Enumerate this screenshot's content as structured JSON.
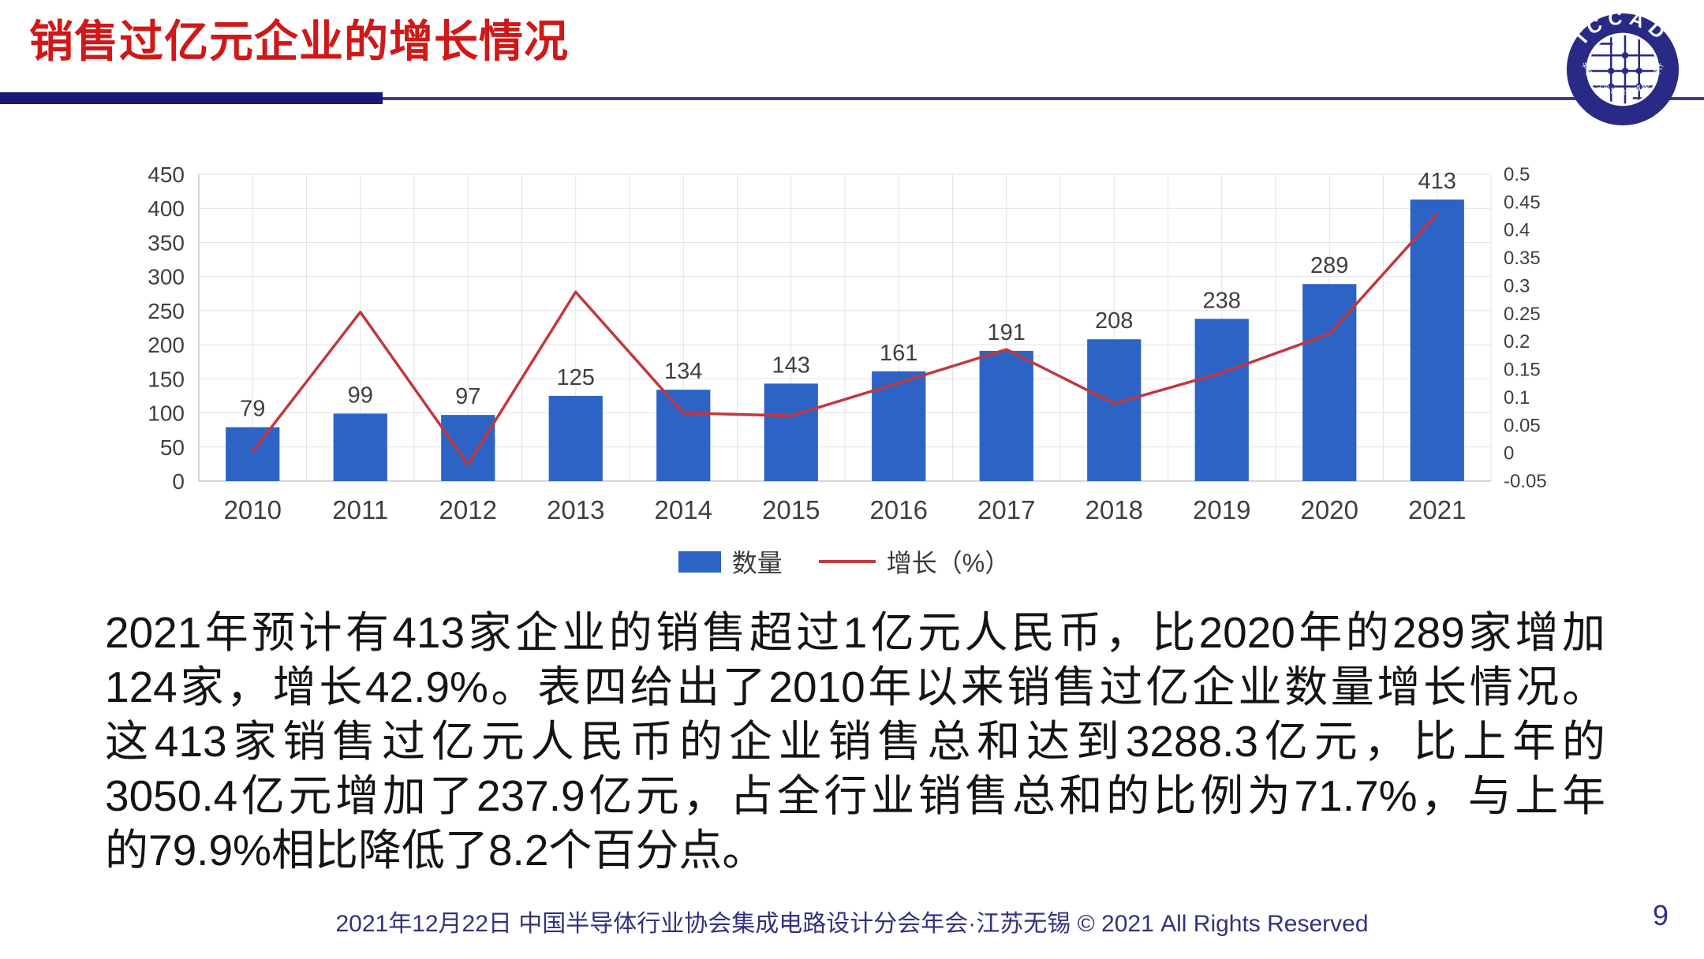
{
  "header": {
    "title": "销售过亿元企业的增长情况",
    "title_color": "#d01818",
    "divider_color": "#1a1a75",
    "divider_thin_color": "#3d3d8f",
    "logo": {
      "top_text": "ICCAD",
      "bottom_text": "中国半导体行业协会集成电路设计分会",
      "ring_color": "#282a86"
    }
  },
  "chart_data": {
    "type": "bar",
    "title": "",
    "xlabel": "",
    "ylabel": "",
    "categories": [
      "2010",
      "2011",
      "2012",
      "2013",
      "2014",
      "2015",
      "2016",
      "2017",
      "2018",
      "2019",
      "2020",
      "2021"
    ],
    "series": [
      {
        "name": "数量",
        "type": "bar",
        "color": "#2e63c6",
        "values": [
          79,
          99,
          97,
          125,
          134,
          143,
          161,
          191,
          208,
          238,
          289,
          413
        ]
      },
      {
        "name": "增长（%）",
        "type": "line",
        "color": "#c1383e",
        "values": [
          0.003,
          0.253,
          -0.02,
          0.289,
          0.072,
          0.067,
          0.126,
          0.186,
          0.089,
          0.144,
          0.214,
          0.429
        ]
      }
    ],
    "left_axis": {
      "min": 0,
      "max": 450,
      "step": 50
    },
    "right_axis": {
      "min": -0.05,
      "max": 0.5,
      "step": 0.05
    },
    "grid": true,
    "grid_color": "#e3e3e3",
    "axis_color": "#c9c9c9",
    "label_color": "#3f3f3f",
    "legend_position": "bottom"
  },
  "legend": {
    "bar_label": "数量",
    "line_label": "增长（%）"
  },
  "body": {
    "lines": [
      "2021年预计有413家企业的销售超过1亿元人民币，比2020年的289家增加",
      "124家，增长42.9%。表四给出了2010年以来销售过亿企业数量增长情况。",
      "这413家销售过亿元人民币的企业销售总和达到3288.3亿元，比上年的",
      "3050.4亿元增加了237.9亿元，占全行业销售总和的比例为71.7%，与上年",
      "的79.9%相比降低了8.2个百分点。"
    ]
  },
  "footer": {
    "text": "2021年12月22日 中国半导体行业协会集成电路设计分会年会·江苏无锡 © 2021 All Rights Reserved",
    "page_number": "9"
  }
}
